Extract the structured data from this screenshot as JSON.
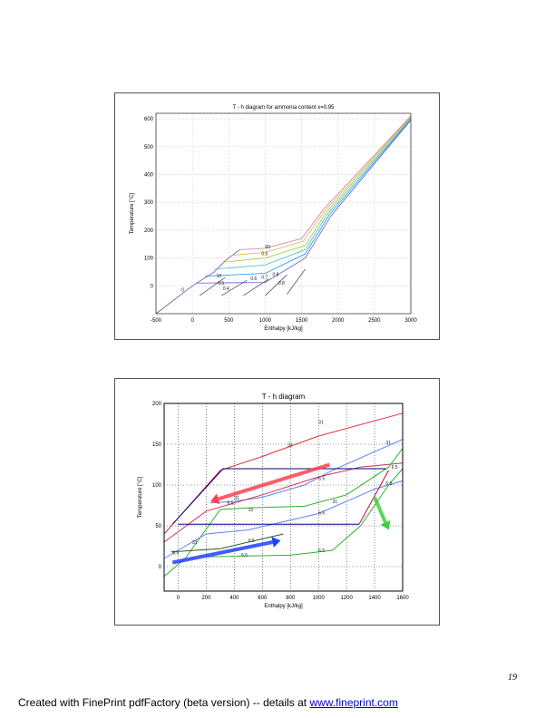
{
  "page_number": "19",
  "footer": {
    "text": "Created with FinePrint pdfFactory (beta version) -- details at ",
    "link": "www.fineprint.com"
  },
  "chart_data": [
    {
      "type": "line",
      "title": "T - h diagram for ammonia content x=0.95",
      "xlabel": "Enthalpy [kJ/kg]",
      "ylabel": "Temperature [°C]",
      "xlim": [
        -500,
        3000
      ],
      "ylim": [
        -100,
        620
      ],
      "grid": true,
      "xticks": [
        -500,
        0,
        500,
        1000,
        1500,
        2000,
        2500,
        3000
      ],
      "yticks": [
        0,
        100,
        200,
        300,
        400,
        500,
        600
      ],
      "series": [
        {
          "color": "#7b4fa0",
          "points": [
            [
              -500,
              -100
            ],
            [
              -100,
              -20
            ],
            [
              0,
              0
            ],
            [
              300,
              50
            ],
            [
              450,
              90
            ],
            [
              650,
              130
            ]
          ]
        },
        {
          "color": "#6a5acd",
          "points": [
            [
              50,
              10
            ],
            [
              1000,
              12
            ],
            [
              1550,
              100
            ],
            [
              1900,
              250
            ],
            [
              3000,
              595
            ]
          ]
        },
        {
          "color": "#1e90ff",
          "points": [
            [
              175,
              35
            ],
            [
              1000,
              45
            ],
            [
              1550,
              115
            ],
            [
              1880,
              255
            ],
            [
              3000,
              598
            ]
          ]
        },
        {
          "color": "#40c0c0",
          "points": [
            [
              300,
              60
            ],
            [
              1000,
              75
            ],
            [
              1550,
              130
            ],
            [
              1860,
              260
            ],
            [
              3000,
              601
            ]
          ]
        },
        {
          "color": "#9acd32",
          "points": [
            [
              425,
              85
            ],
            [
              1000,
              100
            ],
            [
              1550,
              145
            ],
            [
              1840,
              265
            ],
            [
              3000,
              604
            ]
          ]
        },
        {
          "color": "#e0b050",
          "points": [
            [
              550,
              110
            ],
            [
              1000,
              120
            ],
            [
              1520,
              160
            ],
            [
              1820,
              270
            ],
            [
              3000,
              607
            ]
          ]
        },
        {
          "color": "#c080a0",
          "points": [
            [
              650,
              130
            ],
            [
              1000,
              135
            ],
            [
              1500,
              170
            ],
            [
              1800,
              275
            ],
            [
              3000,
              610
            ]
          ]
        },
        {
          "color": "#555555",
          "points": [
            [
              100,
              -35
            ],
            [
              450,
              30
            ]
          ]
        },
        {
          "color": "#555555",
          "points": [
            [
              400,
              -35
            ],
            [
              750,
              20
            ]
          ]
        },
        {
          "color": "#555555",
          "points": [
            [
              700,
              -35
            ],
            [
              1050,
              25
            ]
          ]
        },
        {
          "color": "#555555",
          "points": [
            [
              1000,
              -35
            ],
            [
              1300,
              40
            ]
          ]
        },
        {
          "color": "#555555",
          "points": [
            [
              1300,
              -30
            ],
            [
              1550,
              60
            ]
          ]
        }
      ],
      "labels": [
        {
          "text": "0",
          "x": -150,
          "y": -20
        },
        {
          "text": "0.4",
          "x": 420,
          "y": -15
        },
        {
          "text": "0.5",
          "x": 350,
          "y": 5
        },
        {
          "text": "10",
          "x": 330,
          "y": 30
        },
        {
          "text": "0.5",
          "x": 950,
          "y": 110
        },
        {
          "text": "0.6",
          "x": 800,
          "y": 20
        },
        {
          "text": "0.7",
          "x": 950,
          "y": 25
        },
        {
          "text": "0.8",
          "x": 1100,
          "y": 35
        },
        {
          "text": "0.8",
          "x": 1180,
          "y": 5
        },
        {
          "text": "60",
          "x": 1000,
          "y": 135
        }
      ]
    },
    {
      "type": "line",
      "title": "T - h diagram",
      "xlabel": "Enthalpy [kJ/kg]",
      "ylabel": "Temperature [°C]",
      "xlim": [
        -100,
        1600
      ],
      "ylim": [
        -30,
        200
      ],
      "grid": true,
      "xticks": [
        0,
        200,
        400,
        600,
        800,
        1000,
        1200,
        1400,
        1600
      ],
      "yticks": [
        0,
        50,
        100,
        150,
        200
      ],
      "series": [
        {
          "color": "#e03040",
          "points": [
            [
              -100,
              40
            ],
            [
              300,
              118
            ],
            [
              600,
              135
            ],
            [
              1000,
              160
            ],
            [
              1600,
              188
            ]
          ]
        },
        {
          "color": "#6080ff",
          "points": [
            [
              230,
              78
            ],
            [
              400,
              80
            ],
            [
              600,
              85
            ],
            [
              900,
              100
            ],
            [
              1100,
              118
            ],
            [
              1600,
              156
            ]
          ]
        },
        {
          "color": "#d03050",
          "points": [
            [
              -100,
              30
            ],
            [
              200,
              68
            ],
            [
              600,
              88
            ],
            [
              1000,
              110
            ],
            [
              1300,
              122
            ],
            [
              1600,
              127
            ]
          ]
        },
        {
          "color": "#30b030",
          "points": [
            [
              -100,
              -12
            ],
            [
              50,
              10
            ],
            [
              300,
              70
            ],
            [
              500,
              72
            ],
            [
              900,
              74
            ],
            [
              1200,
              88
            ],
            [
              1500,
              122
            ],
            [
              1600,
              145
            ]
          ]
        },
        {
          "color": "#6080ff",
          "points": [
            [
              -100,
              10
            ],
            [
              200,
              40
            ],
            [
              500,
              45
            ],
            [
              1000,
              65
            ],
            [
              1400,
              95
            ],
            [
              1600,
              105
            ]
          ]
        },
        {
          "color": "#30b030",
          "points": [
            [
              200,
              12
            ],
            [
              800,
              14
            ],
            [
              1100,
              20
            ],
            [
              1300,
              50
            ],
            [
              1500,
              100
            ],
            [
              1600,
              120
            ]
          ]
        },
        {
          "color": "#000080",
          "points": [
            [
              -40,
              52
            ],
            [
              320,
              120
            ],
            [
              1480,
              120
            ]
          ]
        },
        {
          "color": "#000080",
          "points": [
            [
              0,
              52
            ],
            [
              1290,
              52
            ]
          ]
        },
        {
          "color": "#c01030",
          "points": [
            [
              1500,
              118
            ],
            [
              1290,
              52
            ]
          ]
        },
        {
          "color": "#206020",
          "points": [
            [
              -50,
              18
            ],
            [
              300,
              22
            ],
            [
              750,
              40
            ]
          ]
        }
      ],
      "arrows": [
        {
          "color": "#ff4050",
          "from": [
            1080,
            125
          ],
          "to": [
            230,
            80
          ]
        },
        {
          "color": "#2040ff",
          "from": [
            -40,
            5
          ],
          "to": [
            730,
            32
          ]
        },
        {
          "color": "#40d040",
          "from": [
            1400,
            85
          ],
          "to": [
            1500,
            45
          ]
        }
      ],
      "labels": [
        {
          "text": "31",
          "x": 1000,
          "y": 175
        },
        {
          "text": "31",
          "x": 780,
          "y": 147
        },
        {
          "text": "31",
          "x": 1480,
          "y": 150
        },
        {
          "text": "6.5",
          "x": 1520,
          "y": 120
        },
        {
          "text": "6.5",
          "x": 1480,
          "y": 100
        },
        {
          "text": "6.5",
          "x": 1000,
          "y": 106
        },
        {
          "text": "31",
          "x": 400,
          "y": 82
        },
        {
          "text": "31",
          "x": 500,
          "y": 68
        },
        {
          "text": "6.5",
          "x": 350,
          "y": 76
        },
        {
          "text": "31",
          "x": 1100,
          "y": 78
        },
        {
          "text": "6.5",
          "x": 1000,
          "y": 64
        },
        {
          "text": "6.5",
          "x": 500,
          "y": 30
        },
        {
          "text": "6.5",
          "x": 450,
          "y": 12
        },
        {
          "text": "6.5",
          "x": 1000,
          "y": 18
        },
        {
          "text": "31",
          "x": 100,
          "y": 28
        },
        {
          "text": "6.5",
          "x": -40,
          "y": 15
        }
      ]
    }
  ]
}
